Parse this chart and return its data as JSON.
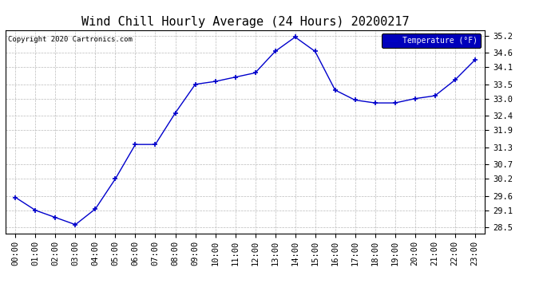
{
  "title": "Wind Chill Hourly Average (24 Hours) 20200217",
  "copyright": "Copyright 2020 Cartronics.com",
  "legend_label": "Temperature (°F)",
  "hours": [
    "00:00",
    "01:00",
    "02:00",
    "03:00",
    "04:00",
    "05:00",
    "06:00",
    "07:00",
    "08:00",
    "09:00",
    "10:00",
    "11:00",
    "12:00",
    "13:00",
    "14:00",
    "15:00",
    "16:00",
    "17:00",
    "18:00",
    "19:00",
    "20:00",
    "21:00",
    "22:00",
    "23:00"
  ],
  "values": [
    29.55,
    29.1,
    28.85,
    28.6,
    29.15,
    30.2,
    31.4,
    31.4,
    32.5,
    33.5,
    33.6,
    33.75,
    33.9,
    34.65,
    35.15,
    34.65,
    33.3,
    32.95,
    32.85,
    32.85,
    33.0,
    33.1,
    33.65,
    34.35
  ],
  "ylim": [
    28.3,
    35.4
  ],
  "yticks": [
    28.5,
    29.1,
    29.6,
    30.2,
    30.7,
    31.3,
    31.9,
    32.4,
    33.0,
    33.5,
    34.1,
    34.6,
    35.2
  ],
  "line_color": "#0000cc",
  "marker": "+",
  "marker_size": 5,
  "bg_color": "#ffffff",
  "plot_bg_color": "#ffffff",
  "grid_color": "#bbbbbb",
  "title_fontsize": 11,
  "tick_fontsize": 7.5,
  "legend_bg": "#0000bb",
  "legend_fg": "#ffffff"
}
